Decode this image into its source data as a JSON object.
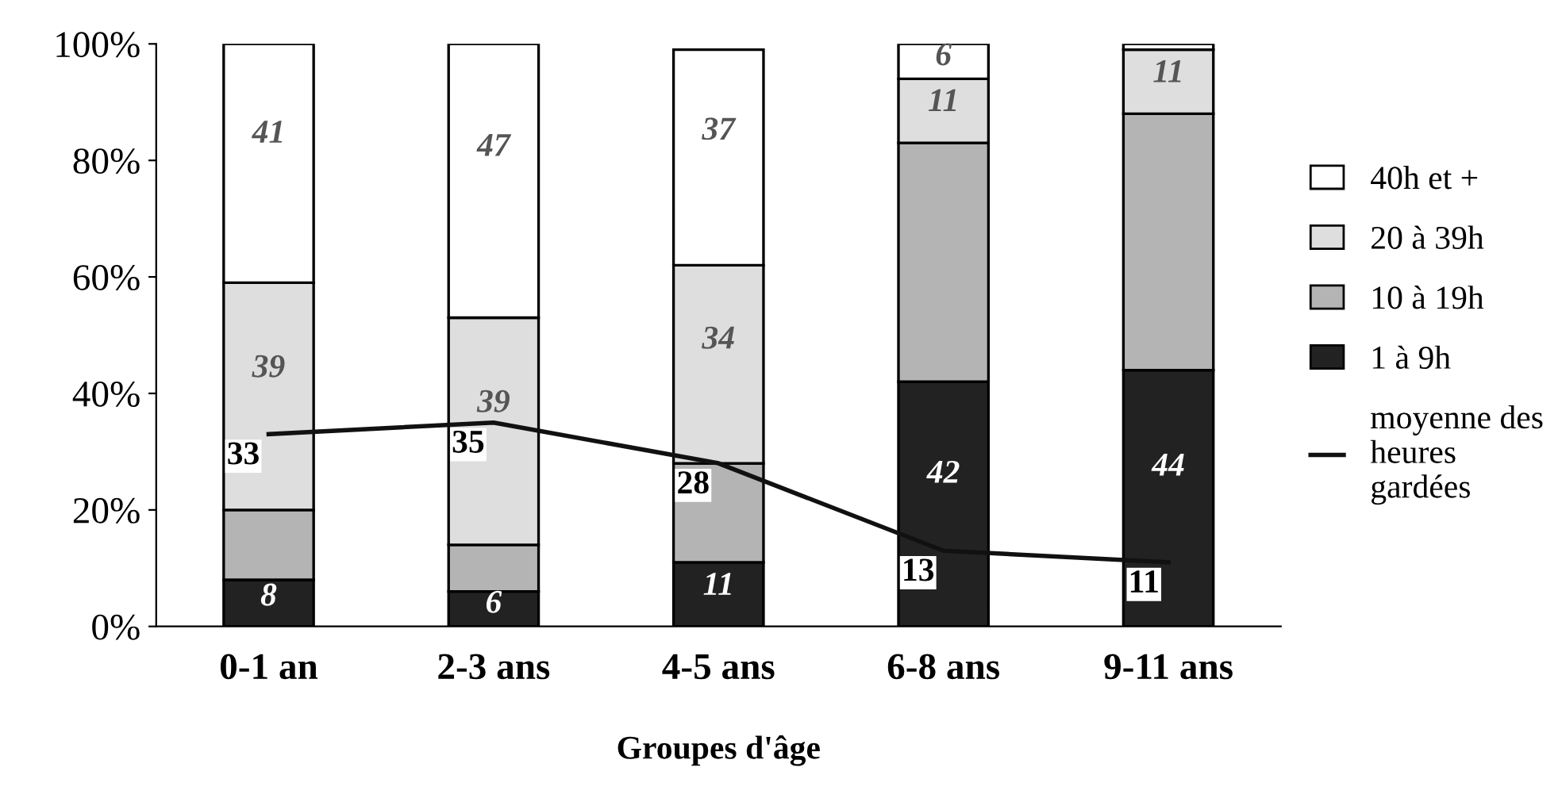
{
  "chart_data": {
    "type": "bar",
    "stacked": true,
    "xlabel": "Groupes d'âge",
    "categories": [
      "0-1 an",
      "2-3 ans",
      "4-5 ans",
      "6-8 ans",
      "9-11 ans"
    ],
    "series": [
      {
        "name": "1 à 9h",
        "color": "#222222",
        "values": [
          8,
          6,
          11,
          42,
          44
        ],
        "value_labels": [
          "8",
          "6",
          "11",
          "42",
          "44"
        ]
      },
      {
        "name": "10 à 19h",
        "color": "#b4b4b4",
        "values": [
          12,
          8,
          17,
          41,
          44
        ],
        "value_labels": [
          null,
          null,
          null,
          null,
          null
        ]
      },
      {
        "name": "20 à 39h",
        "color": "#dedede",
        "values": [
          39,
          39,
          34,
          11,
          11
        ],
        "value_labels": [
          "39",
          "39",
          "34",
          "11",
          "11"
        ]
      },
      {
        "name": "40h et +",
        "color": "#ffffff",
        "values": [
          41,
          47,
          37,
          6,
          1
        ],
        "value_labels": [
          "41",
          "47",
          "37",
          "6",
          null
        ]
      },
      {
        "name": "moyenne des heures gardées",
        "type": "line",
        "color": "#111111",
        "values": [
          33,
          35,
          28,
          13,
          11
        ],
        "value_labels": [
          "33",
          "35",
          "28",
          "13",
          "11"
        ]
      }
    ],
    "ylim": [
      0,
      100
    ],
    "yticks": [
      {
        "value": 0,
        "label": "0%"
      },
      {
        "value": 20,
        "label": "20%"
      },
      {
        "value": 40,
        "label": "40%"
      },
      {
        "value": 60,
        "label": "60%"
      },
      {
        "value": 80,
        "label": "80%"
      },
      {
        "value": 100,
        "label": "100%"
      }
    ],
    "grid": false,
    "legend": "right",
    "marker": "none",
    "line_style": "solid"
  }
}
